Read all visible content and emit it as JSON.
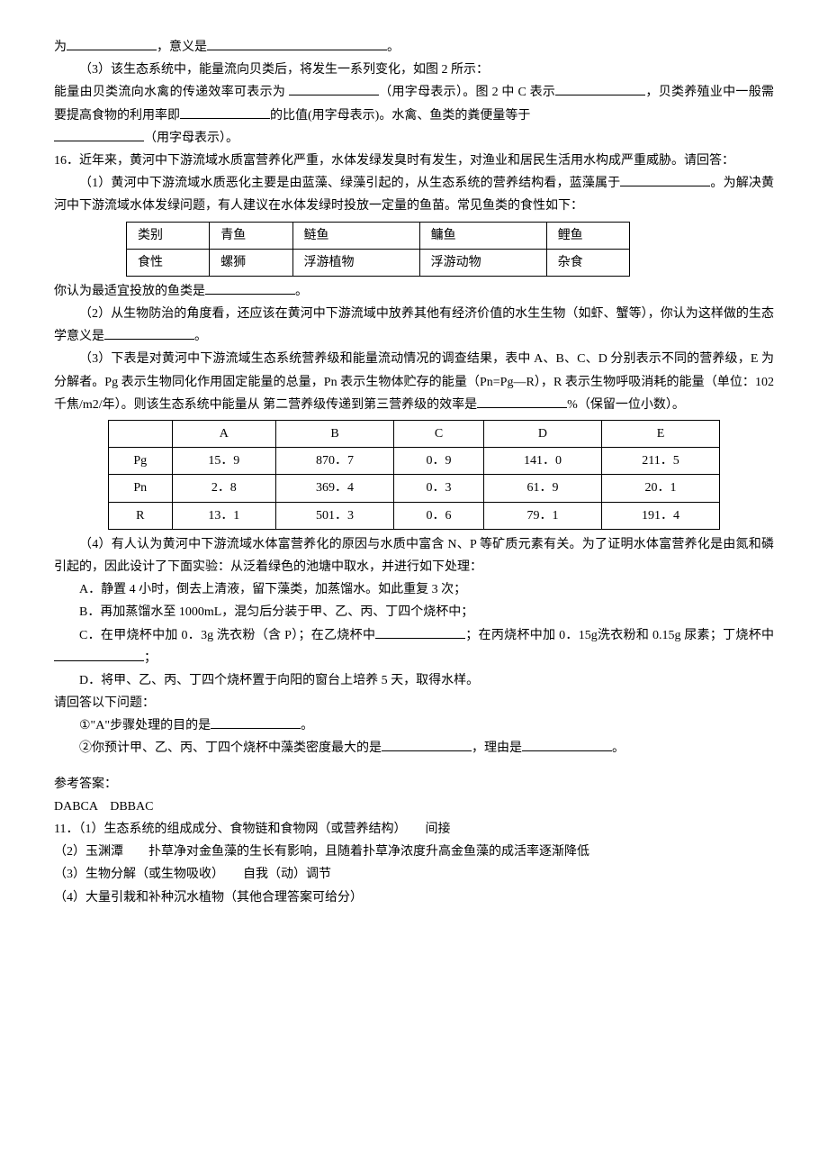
{
  "intro": {
    "line1_pre": "为",
    "line1_mid": "，意义是",
    "line1_end": "。",
    "para3": "（3）该生态系统中，能量流向贝类后，将发生一系列变化，如图 2 所示：",
    "para3b_a": "能量由贝类流向水禽的传递效率可表示为 ",
    "para3b_b": "（用字母表示）。图 2 中 C 表示",
    "para3b_c": "，贝类养殖业中一般需要提高食物的利用率即",
    "para3b_d": "的比值(用字母表示)。水禽、鱼类的粪便量等于",
    "para3b_e": "（用字母表示）。"
  },
  "q16": {
    "stem": "16．近年来，黄河中下游流域水质富营养化严重，水体发绿发臭时有发生，对渔业和居民生活用水构成严重威胁。请回答：",
    "p1a": "（1）黄河中下游流域水质恶化主要是由蓝藻、绿藻引起的，从生态系统的营养结构看，蓝藻属于",
    "p1b": "。为解决黄河中下游流域水体发绿问题，有人建议在水体发绿时投放一定量的鱼苗。常见鱼类的食性如下：",
    "fish_table": {
      "rows": [
        [
          "类别",
          "青鱼",
          "鲢鱼",
          "鳙鱼",
          "鲤鱼"
        ],
        [
          "食性",
          "螺狮",
          "浮游植物",
          "浮游动物",
          "杂食"
        ]
      ]
    },
    "p1c_a": "你认为最适宜投放的鱼类是",
    "p1c_b": "。",
    "p2a": "（2）从生物防治的角度看，还应该在黄河中下游流域中放养其他有经济价值的水生生物（如虾、蟹等），你认为这样做的生态学意义是",
    "p2b": "。",
    "p3a": "（3）下表是对黄河中下游流域生态系统营养级和能量流动情况的调查结果，表中 A、B、C、D 分别表示不同的营养级，E 为分解者。Pg 表示生物同化作用固定能量的总量，Pn 表示生物体贮存的能量（Pn=Pg—R），R 表示生物呼吸消耗的能量（单位：102 千焦/m2/年）。则该生态系统中能量从 第二营养级传递到第三营养级的效率是",
    "p3b": "%（保留一位小数）。",
    "energy_table": {
      "header": [
        "",
        "A",
        "B",
        "C",
        "D",
        "E"
      ],
      "rows": [
        [
          "Pg",
          "15．9",
          "870．7",
          "0．9",
          "141．0",
          "211．5"
        ],
        [
          "Pn",
          "2．8",
          "369．4",
          "0．3",
          "61．9",
          "20．1"
        ],
        [
          "R",
          "13．1",
          "501．3",
          "0．6",
          "79．1",
          "191．4"
        ]
      ]
    },
    "p4": "（4）有人认为黄河中下游流域水体富营养化的原因与水质中富含 N、P 等矿质元素有关。为了证明水体富营养化是由氮和磷引起的，因此设计了下面实验：从泛着绿色的池塘中取水，并进行如下处理：",
    "stepA": "A．静置 4 小时，倒去上清液，留下藻类，加蒸馏水。如此重复 3 次；",
    "stepB": "B．再加蒸馏水至 1000mL，混匀后分装于甲、乙、丙、丁四个烧杯中；",
    "stepC_a": "C．在甲烧杯中加 0．3g 洗衣粉（含 P）；在乙烧杯中",
    "stepC_b": "；在丙烧杯中加 0．15g洗衣粉和 0.15g 尿素；丁烧杯中",
    "stepC_c": "；",
    "stepD": "D．将甲、乙、丙、丁四个烧杯置于向阳的窗台上培养 5 天，取得水样。",
    "conclude": "请回答以下问题：",
    "q1a": "①\"A\"步骤处理的目的是",
    "q1b": "。",
    "q2a": "②你预计甲、乙、丙、丁四个烧杯中藻类密度最大的是",
    "q2b": "，理由是",
    "q2c": "。"
  },
  "answers": {
    "title": "参考答案：",
    "line1": "DABCA　DBBAC",
    "a11_1": "11．（1）生态系统的组成成分、食物链和食物网（或营养结构）　　间接",
    "a11_2": "（2）玉渊潭　　扑草净对金鱼藻的生长有影响，且随着扑草净浓度升高金鱼藻的成活率逐渐降低",
    "a11_3": "（3）生物分解（或生物吸收）　　自我（动）调节",
    "a11_4": "（4）大量引栽和补种沉水植物（其他合理答案可给分）"
  }
}
